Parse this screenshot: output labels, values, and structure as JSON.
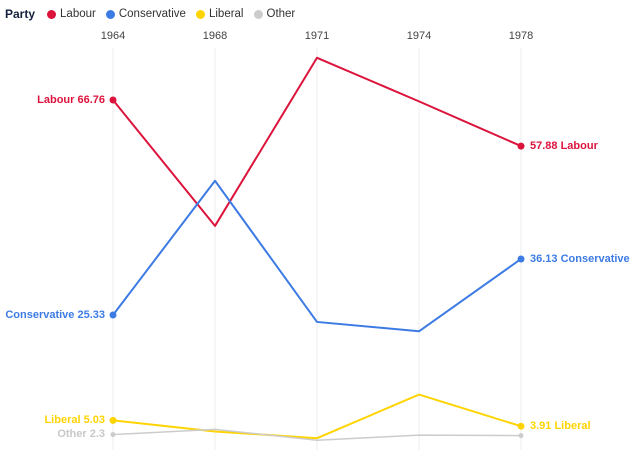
{
  "legend": {
    "title": "Party",
    "items": [
      {
        "label": "Labour",
        "color": "#dc143c"
      },
      {
        "label": "Conservative",
        "color": "#3d7be4"
      },
      {
        "label": "Liberal",
        "color": "#ffd400"
      },
      {
        "label": "Other",
        "color": "#cccccc"
      }
    ]
  },
  "chart_data": {
    "type": "line",
    "title": "",
    "xlabel": "",
    "ylabel": "",
    "categories": [
      "1964",
      "1968",
      "1971",
      "1974",
      "1978"
    ],
    "series": [
      {
        "name": "Labour",
        "color": "#dc143c",
        "values": [
          66.76,
          42.5,
          74.9,
          66.5,
          57.88
        ]
      },
      {
        "name": "Conservative",
        "color": "#3d7be4",
        "values": [
          25.33,
          51.2,
          24.0,
          22.2,
          36.13
        ]
      },
      {
        "name": "Liberal",
        "color": "#ffd400",
        "values": [
          5.03,
          2.9,
          1.6,
          10.0,
          3.91
        ]
      },
      {
        "name": "Other",
        "color": "#cccccc",
        "values": [
          2.3,
          3.3,
          1.2,
          2.2,
          2.1
        ]
      }
    ],
    "ylim": [
      0,
      80
    ],
    "x_axis_position": "top",
    "grid": "vertical-only",
    "legend_position": "top-left",
    "annotations": {
      "left": [
        {
          "text": "Labour 66.76",
          "color": "#dc143c"
        },
        {
          "text": "Conservative 25.33",
          "color": "#3d7be4"
        },
        {
          "text": "Liberal 5.03",
          "color": "#ffd400"
        },
        {
          "text": "Other 2.3",
          "color": "#c8c8c8"
        }
      ],
      "right": [
        {
          "text": "57.88 Labour",
          "color": "#dc143c"
        },
        {
          "text": "36.13 Conservative",
          "color": "#3d7be4"
        },
        {
          "text": "3.91 Liberal",
          "color": "#ffd400"
        }
      ]
    }
  }
}
